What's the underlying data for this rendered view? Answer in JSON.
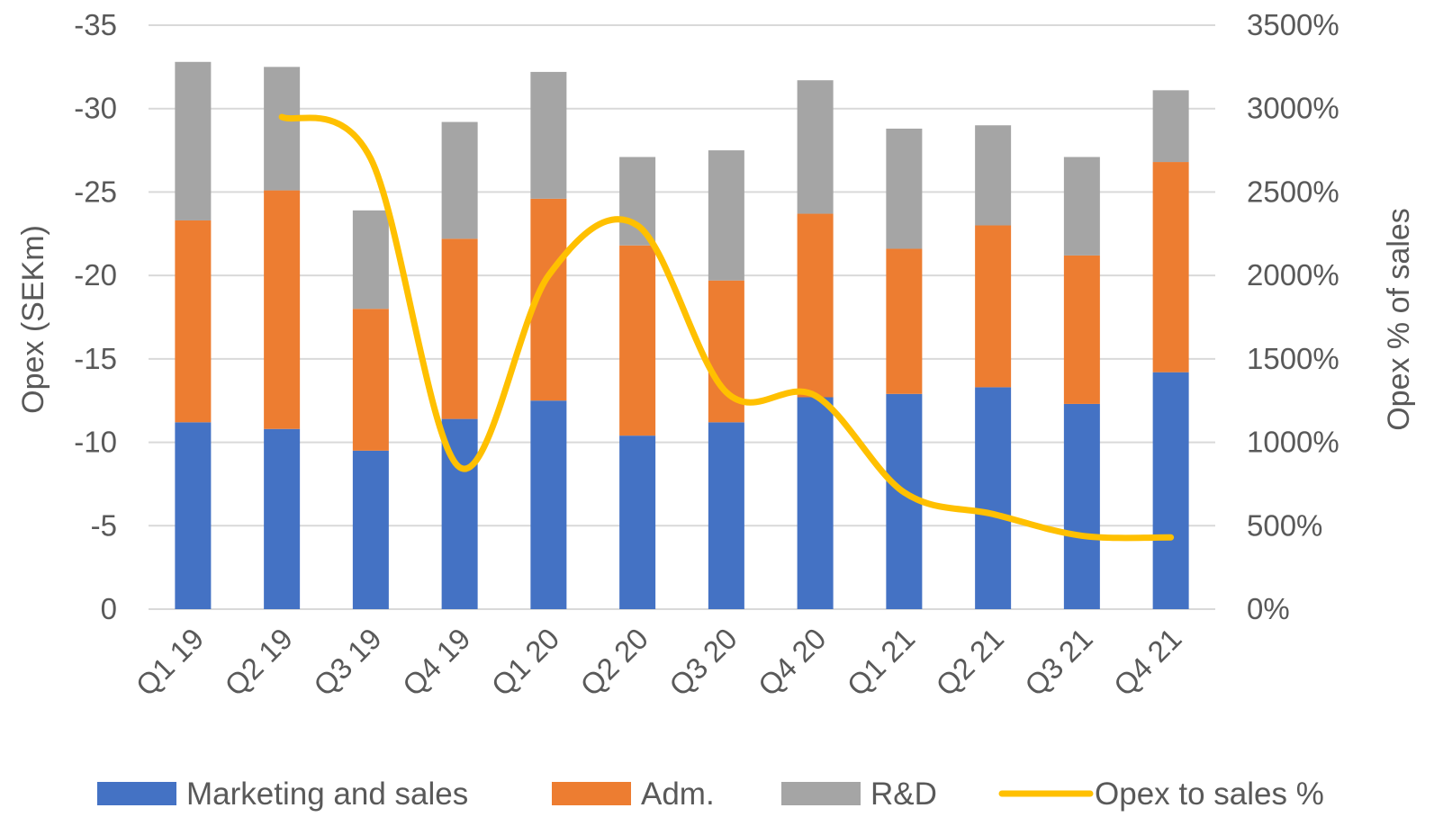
{
  "chart_data": {
    "type": "bar",
    "stacked": true,
    "title": "",
    "categories": [
      "Q1 19",
      "Q2 19",
      "Q3 19",
      "Q4 19",
      "Q1 20",
      "Q2 20",
      "Q3 20",
      "Q4 20",
      "Q1 21",
      "Q2 21",
      "Q3 21",
      "Q4 21"
    ],
    "series": [
      {
        "name": "Marketing and sales",
        "type": "bar",
        "axis": "left",
        "color": "#4472C4",
        "values": [
          -11.2,
          -10.8,
          -9.5,
          -11.4,
          -12.5,
          -10.4,
          -11.2,
          -12.7,
          -12.9,
          -13.3,
          -12.3,
          -14.2
        ]
      },
      {
        "name": "Adm.",
        "type": "bar",
        "axis": "left",
        "color": "#ED7D31",
        "values": [
          -12.1,
          -14.3,
          -8.5,
          -10.8,
          -12.1,
          -11.4,
          -8.5,
          -11.0,
          -8.7,
          -9.7,
          -8.9,
          -12.6
        ]
      },
      {
        "name": "R&D",
        "type": "bar",
        "axis": "left",
        "color": "#A5A5A5",
        "values": [
          -9.5,
          -7.4,
          -5.9,
          -7.0,
          -7.6,
          -5.3,
          -7.8,
          -8.0,
          -7.2,
          -6.0,
          -5.9,
          -4.3
        ]
      },
      {
        "name": "Opex to sales %",
        "type": "line",
        "axis": "right",
        "color": "#FFC000",
        "smooth": true,
        "values": [
          null,
          2950,
          2700,
          850,
          2000,
          2300,
          1300,
          1280,
          700,
          570,
          440,
          430
        ]
      }
    ],
    "ylabel": "Opex (SEKm)",
    "y2label": "Opex % of sales",
    "ylim": [
      -35,
      0
    ],
    "y_ticks": [
      "-35",
      "-30",
      "-25",
      "-20",
      "-15",
      "-10",
      "-5",
      "0"
    ],
    "y2lim": [
      0,
      3500
    ],
    "y2_ticks": [
      "3500%",
      "3000%",
      "2500%",
      "2000%",
      "1500%",
      "1000%",
      "500%",
      "0%"
    ],
    "y_axis_inverted": true,
    "grid": true,
    "legend_position": "bottom"
  }
}
